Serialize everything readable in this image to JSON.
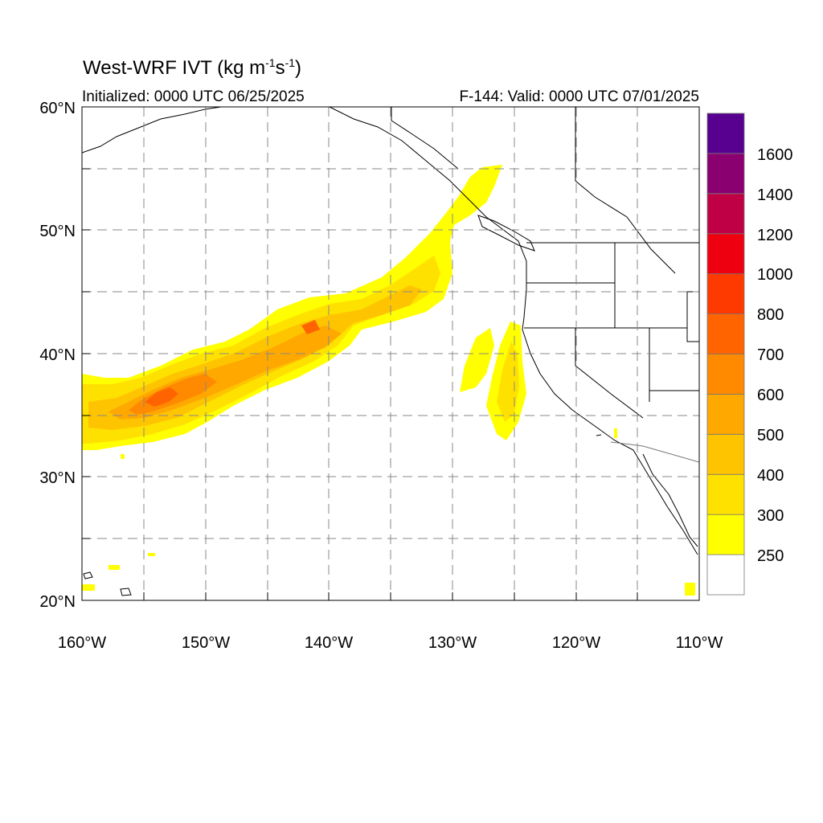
{
  "title": {
    "prefix": "West-WRF IVT (kg m",
    "exp1": "-1",
    "mid": "s",
    "exp2": "-1",
    "suffix": ")"
  },
  "initialized": "Initialized: 0000 UTC 06/25/2025",
  "valid": "F-144: Valid: 0000 UTC 07/01/2025",
  "axes": {
    "lon_labels": [
      "160°W",
      "150°W",
      "140°W",
      "130°W",
      "120°W",
      "110°W"
    ],
    "lat_labels": [
      "60°N",
      "50°N",
      "40°N",
      "30°N",
      "20°N"
    ],
    "lon_range": [
      -160,
      -110
    ],
    "lat_range": [
      20,
      60
    ],
    "grid_interval_deg": 5,
    "grid_style": "dashed"
  },
  "colorbar": {
    "placement": "right",
    "labels": [
      "1600",
      "1400",
      "1200",
      "1000",
      "800",
      "700",
      "600",
      "500",
      "400",
      "300",
      "250"
    ],
    "levels": [
      250,
      300,
      400,
      500,
      600,
      700,
      800,
      1000,
      1200,
      1400,
      1600
    ],
    "colors": [
      "#FFFFFF",
      "#FFFF00",
      "#FFE100",
      "#FFC400",
      "#FFA800",
      "#FF8A00",
      "#FF6400",
      "#FF3A00",
      "#EE0010",
      "#C00045",
      "#8A0070",
      "#58008F"
    ]
  },
  "chart_data": {
    "type": "heatmap",
    "variable": "IVT",
    "units": "kg m-1 s-1",
    "features": [
      {
        "name": "atmospheric river",
        "from": [
          -160,
          35
        ],
        "to": [
          -128,
          54
        ],
        "max_ivt": 700
      },
      {
        "name": "offshore plume",
        "center": [
          -125.5,
          37
        ],
        "max_ivt": 400
      }
    ]
  }
}
